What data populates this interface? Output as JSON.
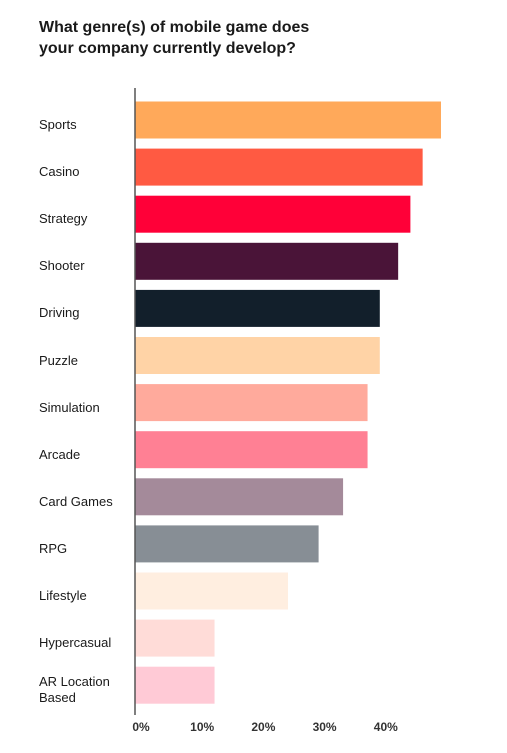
{
  "chart_data": {
    "type": "bar",
    "orientation": "horizontal",
    "title": "What genre(s) of mobile game does your company currently develop?",
    "categories": [
      "Sports",
      "Casino",
      "Strategy",
      "Shooter",
      "Driving",
      "Puzzle",
      "Simulation",
      "Arcade",
      "Card Games",
      "RPG",
      "Lifestyle",
      "Hypercasual",
      "AR Location Based"
    ],
    "values": [
      50,
      47,
      45,
      43,
      40,
      40,
      38,
      38,
      34,
      30,
      25,
      13,
      13
    ],
    "colors": [
      "#ffa95a",
      "#ff5a42",
      "#ff0038",
      "#4a1438",
      "#121f2b",
      "#ffd3a6",
      "#ffaa9c",
      "#ff8094",
      "#a48a9a",
      "#878e95",
      "#ffeee0",
      "#ffdcd8",
      "#ffcad6"
    ],
    "xlim": [
      0,
      50
    ],
    "xticks": [
      {
        "value": 0,
        "label": "0%"
      },
      {
        "value": 10,
        "label": "10%"
      },
      {
        "value": 20,
        "label": "20%"
      },
      {
        "value": 30,
        "label": "30%"
      },
      {
        "value": 40,
        "label": "40%"
      }
    ]
  }
}
